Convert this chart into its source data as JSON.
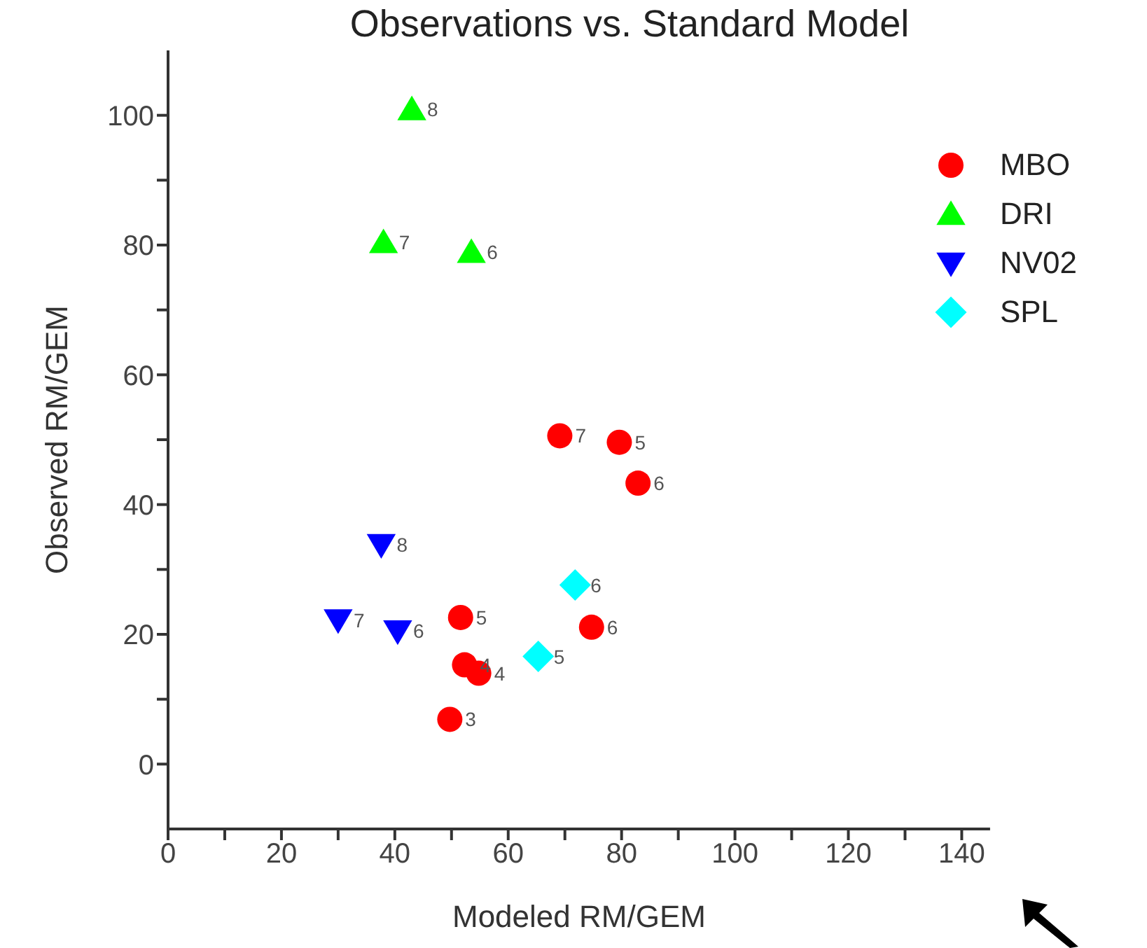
{
  "chart_data": {
    "type": "scatter",
    "title": "Observations vs. Standard Model",
    "xlabel": "Modeled RM/GEM",
    "ylabel": "Observed RM/GEM",
    "xlim": [
      0,
      145
    ],
    "ylim": [
      -10,
      110
    ],
    "xticks": [
      0,
      {
        "value": 10,
        "label": null
      },
      20,
      {
        "value": 30,
        "label": null
      },
      40,
      {
        "value": 50,
        "label": null
      },
      60,
      {
        "value": 70,
        "label": null
      },
      80,
      {
        "value": 90,
        "label": null
      },
      100,
      {
        "value": 110,
        "label": null
      },
      120,
      {
        "value": 130,
        "label": null
      },
      140
    ],
    "yticks": [
      0,
      {
        "value": 10,
        "label": null
      },
      20,
      {
        "value": 30,
        "label": null
      },
      40,
      {
        "value": 50,
        "label": null
      },
      60,
      {
        "value": 70,
        "label": null
      },
      80,
      {
        "value": 90,
        "label": null
      },
      100
    ],
    "grid": false,
    "legend": "top right",
    "series": [
      {
        "name": "MBO",
        "color": "#ff0000",
        "marker": "circle",
        "x": [
          69.1,
          79.6,
          82.9,
          51.6,
          52.3,
          54.8,
          49.7,
          74.7
        ],
        "values": [
          50.6,
          49.6,
          43.3,
          22.6,
          15.3,
          14.0,
          6.9,
          21.1
        ]
      },
      {
        "name": "DRI",
        "color": "#00ff00",
        "marker": "triangle",
        "x": [
          43.0,
          38.0,
          53.5
        ],
        "values": [
          100.9,
          80.4,
          78.9
        ]
      },
      {
        "name": "NV02",
        "color": "#0000ff",
        "marker": "triangle-down",
        "x": [
          37.6,
          30.0,
          40.5
        ],
        "values": [
          33.8,
          22.2,
          20.5
        ]
      },
      {
        "name": "SPL",
        "color": "#00ffff",
        "marker": "diamond",
        "x": [
          71.8,
          65.3
        ],
        "values": [
          27.6,
          16.6
        ]
      }
    ],
    "annotations": [
      {
        "text": "7",
        "x": 69.1,
        "y": 50.6
      },
      {
        "text": "5",
        "x": 79.6,
        "y": 49.6
      },
      {
        "text": "6",
        "x": 82.9,
        "y": 43.3
      },
      {
        "text": "5",
        "x": 51.6,
        "y": 22.6
      },
      {
        "text": "4",
        "x": 52.3,
        "y": 15.3
      },
      {
        "text": "4",
        "x": 54.8,
        "y": 14.0
      },
      {
        "text": "3",
        "x": 49.7,
        "y": 6.9
      },
      {
        "text": "6",
        "x": 74.7,
        "y": 21.1
      },
      {
        "text": "8",
        "x": 43.0,
        "y": 100.9
      },
      {
        "text": "7",
        "x": 38.0,
        "y": 80.4
      },
      {
        "text": "6",
        "x": 53.5,
        "y": 78.9
      },
      {
        "text": "8",
        "x": 37.6,
        "y": 33.8
      },
      {
        "text": "7",
        "x": 30.0,
        "y": 22.2
      },
      {
        "text": "6",
        "x": 40.5,
        "y": 20.5
      },
      {
        "text": "6",
        "x": 71.8,
        "y": 27.6
      },
      {
        "text": "5",
        "x": 65.3,
        "y": 16.6
      }
    ]
  }
}
